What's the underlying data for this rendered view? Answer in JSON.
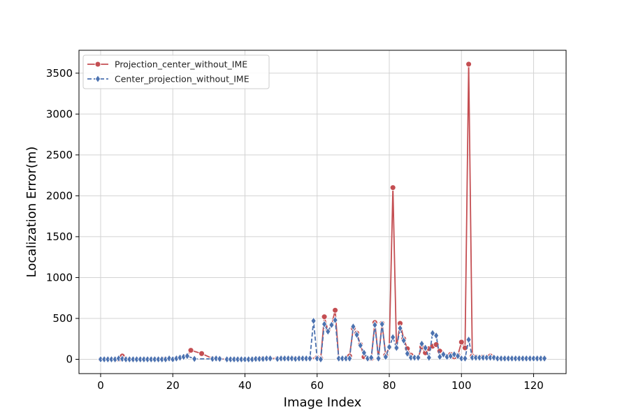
{
  "chart_data": {
    "type": "line",
    "title": "",
    "xlabel": "Image Index",
    "ylabel": "Localization Error(m)",
    "xlim": [
      -6,
      129
    ],
    "ylim": [
      -175,
      3780
    ],
    "xticks": [
      0,
      20,
      40,
      60,
      80,
      100,
      120
    ],
    "yticks": [
      0,
      500,
      1000,
      1500,
      2000,
      2500,
      3000,
      3500
    ],
    "grid": true,
    "legend_position": "top-left",
    "series": [
      {
        "name": "Projection_center_without_IME",
        "color": "#c44e52",
        "line_style": "solid",
        "marker": "circle",
        "points": [
          [
            0,
            0
          ],
          [
            1,
            0
          ],
          [
            2,
            0
          ],
          [
            3,
            0
          ],
          [
            4,
            0
          ],
          [
            5,
            0
          ],
          [
            6,
            40
          ],
          [
            7,
            5
          ],
          [
            8,
            0
          ],
          [
            9,
            0
          ],
          [
            10,
            0
          ],
          [
            11,
            0
          ],
          [
            12,
            0
          ],
          [
            13,
            0
          ],
          [
            14,
            0
          ],
          [
            15,
            0
          ],
          [
            16,
            0
          ],
          [
            17,
            0
          ],
          [
            18,
            5
          ],
          [
            19,
            5
          ],
          [
            20,
            0
          ],
          [
            21,
            10
          ],
          [
            22,
            20
          ],
          [
            23,
            30
          ],
          [
            24,
            40
          ],
          [
            25,
            110
          ],
          [
            28,
            70
          ],
          [
            31,
            10
          ],
          [
            32,
            10
          ],
          [
            33,
            5
          ],
          [
            35,
            0
          ],
          [
            36,
            0
          ],
          [
            37,
            0
          ],
          [
            38,
            0
          ],
          [
            39,
            0
          ],
          [
            40,
            0
          ],
          [
            41,
            0
          ],
          [
            42,
            0
          ],
          [
            43,
            5
          ],
          [
            44,
            5
          ],
          [
            45,
            10
          ],
          [
            46,
            10
          ],
          [
            47,
            10
          ],
          [
            49,
            10
          ],
          [
            50,
            10
          ],
          [
            51,
            10
          ],
          [
            52,
            10
          ],
          [
            53,
            10
          ],
          [
            54,
            10
          ],
          [
            55,
            10
          ],
          [
            56,
            10
          ],
          [
            57,
            10
          ],
          [
            58,
            10
          ],
          [
            60,
            20
          ],
          [
            61,
            10
          ],
          [
            62,
            520
          ],
          [
            63,
            350
          ],
          [
            64,
            420
          ],
          [
            65,
            600
          ],
          [
            66,
            10
          ],
          [
            67,
            10
          ],
          [
            68,
            10
          ],
          [
            69,
            40
          ],
          [
            70,
            380
          ],
          [
            71,
            320
          ],
          [
            72,
            180
          ],
          [
            73,
            30
          ],
          [
            74,
            10
          ],
          [
            75,
            10
          ],
          [
            76,
            450
          ],
          [
            77,
            10
          ],
          [
            78,
            440
          ],
          [
            79,
            50
          ],
          [
            80,
            150
          ],
          [
            81,
            2100
          ],
          [
            82,
            140
          ],
          [
            83,
            440
          ],
          [
            84,
            250
          ],
          [
            85,
            130
          ],
          [
            86,
            50
          ],
          [
            87,
            20
          ],
          [
            88,
            20
          ],
          [
            89,
            150
          ],
          [
            90,
            80
          ],
          [
            91,
            130
          ],
          [
            92,
            160
          ],
          [
            93,
            180
          ],
          [
            94,
            100
          ],
          [
            95,
            60
          ],
          [
            96,
            40
          ],
          [
            97,
            60
          ],
          [
            98,
            30
          ],
          [
            99,
            50
          ],
          [
            100,
            210
          ],
          [
            101,
            140
          ],
          [
            102,
            3610
          ],
          [
            103,
            40
          ],
          [
            104,
            30
          ],
          [
            105,
            20
          ],
          [
            106,
            30
          ],
          [
            107,
            20
          ],
          [
            108,
            40
          ],
          [
            109,
            20
          ],
          [
            110,
            10
          ],
          [
            111,
            10
          ],
          [
            112,
            10
          ],
          [
            113,
            10
          ],
          [
            114,
            10
          ],
          [
            115,
            10
          ],
          [
            116,
            10
          ],
          [
            117,
            10
          ],
          [
            118,
            10
          ],
          [
            119,
            10
          ],
          [
            120,
            10
          ],
          [
            121,
            10
          ],
          [
            122,
            10
          ],
          [
            123,
            10
          ]
        ]
      },
      {
        "name": "Center_projection_without_IME",
        "color": "#4c72b0",
        "line_style": "dashed",
        "marker": "diamond",
        "points": [
          [
            0,
            0
          ],
          [
            1,
            0
          ],
          [
            2,
            0
          ],
          [
            3,
            0
          ],
          [
            4,
            0
          ],
          [
            5,
            10
          ],
          [
            6,
            5
          ],
          [
            7,
            0
          ],
          [
            8,
            0
          ],
          [
            9,
            0
          ],
          [
            10,
            0
          ],
          [
            11,
            0
          ],
          [
            12,
            0
          ],
          [
            13,
            0
          ],
          [
            14,
            0
          ],
          [
            15,
            0
          ],
          [
            16,
            0
          ],
          [
            17,
            0
          ],
          [
            18,
            0
          ],
          [
            19,
            10
          ],
          [
            20,
            0
          ],
          [
            21,
            10
          ],
          [
            22,
            20
          ],
          [
            23,
            30
          ],
          [
            24,
            40
          ],
          [
            26,
            5
          ],
          [
            31,
            5
          ],
          [
            32,
            10
          ],
          [
            33,
            5
          ],
          [
            35,
            0
          ],
          [
            36,
            0
          ],
          [
            37,
            0
          ],
          [
            38,
            0
          ],
          [
            39,
            0
          ],
          [
            40,
            0
          ],
          [
            41,
            0
          ],
          [
            42,
            0
          ],
          [
            43,
            5
          ],
          [
            44,
            5
          ],
          [
            45,
            5
          ],
          [
            46,
            10
          ],
          [
            47,
            10
          ],
          [
            49,
            5
          ],
          [
            50,
            10
          ],
          [
            51,
            10
          ],
          [
            52,
            10
          ],
          [
            53,
            10
          ],
          [
            54,
            5
          ],
          [
            55,
            10
          ],
          [
            56,
            10
          ],
          [
            57,
            10
          ],
          [
            58,
            10
          ],
          [
            59,
            470
          ],
          [
            60,
            10
          ],
          [
            61,
            0
          ],
          [
            62,
            430
          ],
          [
            63,
            340
          ],
          [
            64,
            420
          ],
          [
            65,
            480
          ],
          [
            66,
            10
          ],
          [
            67,
            10
          ],
          [
            68,
            10
          ],
          [
            69,
            10
          ],
          [
            70,
            400
          ],
          [
            71,
            300
          ],
          [
            72,
            170
          ],
          [
            73,
            80
          ],
          [
            74,
            10
          ],
          [
            75,
            20
          ],
          [
            76,
            420
          ],
          [
            77,
            10
          ],
          [
            78,
            430
          ],
          [
            79,
            30
          ],
          [
            80,
            150
          ],
          [
            81,
            270
          ],
          [
            82,
            140
          ],
          [
            83,
            380
          ],
          [
            84,
            230
          ],
          [
            85,
            70
          ],
          [
            86,
            20
          ],
          [
            87,
            20
          ],
          [
            88,
            20
          ],
          [
            89,
            190
          ],
          [
            90,
            140
          ],
          [
            91,
            20
          ],
          [
            92,
            320
          ],
          [
            93,
            290
          ],
          [
            94,
            30
          ],
          [
            95,
            60
          ],
          [
            96,
            30
          ],
          [
            97,
            40
          ],
          [
            98,
            60
          ],
          [
            99,
            40
          ],
          [
            100,
            10
          ],
          [
            101,
            10
          ],
          [
            102,
            240
          ],
          [
            103,
            20
          ],
          [
            104,
            20
          ],
          [
            105,
            20
          ],
          [
            106,
            20
          ],
          [
            107,
            20
          ],
          [
            108,
            20
          ],
          [
            109,
            20
          ],
          [
            110,
            10
          ],
          [
            111,
            10
          ],
          [
            112,
            10
          ],
          [
            113,
            10
          ],
          [
            114,
            10
          ],
          [
            115,
            10
          ],
          [
            116,
            10
          ],
          [
            117,
            10
          ],
          [
            118,
            10
          ],
          [
            119,
            10
          ],
          [
            120,
            10
          ],
          [
            121,
            10
          ],
          [
            122,
            10
          ],
          [
            123,
            10
          ]
        ]
      }
    ]
  }
}
